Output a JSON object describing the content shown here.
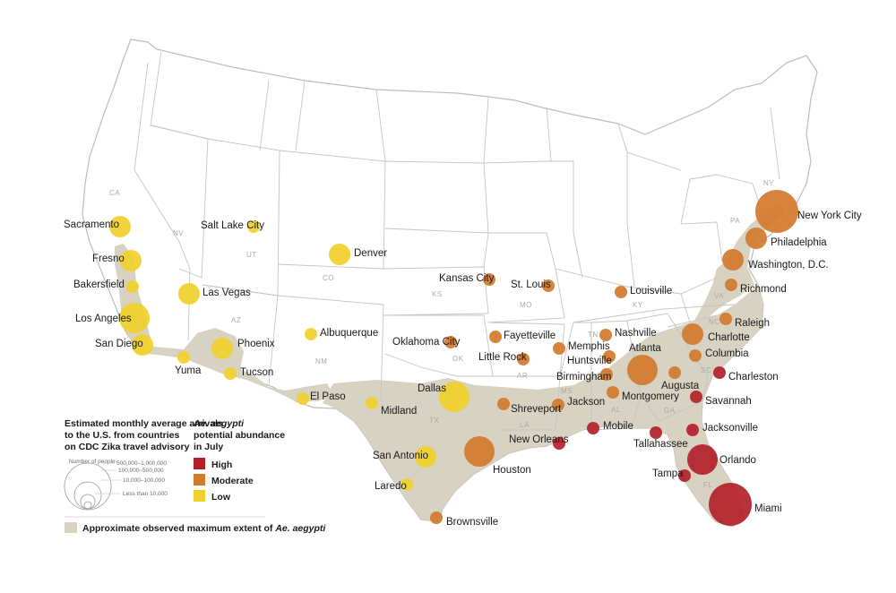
{
  "colors": {
    "high": "#b3202a",
    "moderate": "#d27a2c",
    "low": "#f0d02b",
    "extent": "#d8d2c2",
    "state_line": "#b8b8b8"
  },
  "state_labels": [
    "CA",
    "NV",
    "UT",
    "AZ",
    "CO",
    "NM",
    "KS",
    "OK",
    "TX",
    "MO",
    "AR",
    "LA",
    "MS",
    "AL",
    "GA",
    "TN",
    "KY",
    "SC",
    "NC",
    "VA",
    "FL",
    "PA",
    "NY"
  ],
  "cities": [
    {
      "name": "New York City",
      "level": "moderate",
      "arrivals": "500,000–1,000,000"
    },
    {
      "name": "Philadelphia",
      "level": "moderate",
      "arrivals": "10,000–100,000"
    },
    {
      "name": "Washington, D.C.",
      "level": "moderate",
      "arrivals": "10,000–100,000"
    },
    {
      "name": "Richmond",
      "level": "moderate",
      "arrivals": "Less than 10,000"
    },
    {
      "name": "Raleigh",
      "level": "moderate",
      "arrivals": "Less than 10,000"
    },
    {
      "name": "Charlotte",
      "level": "moderate",
      "arrivals": "10,000–100,000"
    },
    {
      "name": "Columbia",
      "level": "moderate",
      "arrivals": "Less than 10,000"
    },
    {
      "name": "Charleston",
      "level": "high",
      "arrivals": "Less than 10,000"
    },
    {
      "name": "Savannah",
      "level": "high",
      "arrivals": "Less than 10,000"
    },
    {
      "name": "Jacksonville",
      "level": "high",
      "arrivals": "Less than 10,000"
    },
    {
      "name": "Orlando",
      "level": "high",
      "arrivals": "100,000–500,000"
    },
    {
      "name": "Tampa",
      "level": "high",
      "arrivals": "Less than 10,000"
    },
    {
      "name": "Miami",
      "level": "high",
      "arrivals": "500,000–1,000,000"
    },
    {
      "name": "Tallahassee",
      "level": "high",
      "arrivals": "Less than 10,000"
    },
    {
      "name": "Augusta",
      "level": "moderate",
      "arrivals": "Less than 10,000"
    },
    {
      "name": "Atlanta",
      "level": "moderate",
      "arrivals": "100,000–500,000"
    },
    {
      "name": "Nashville",
      "level": "moderate",
      "arrivals": "Less than 10,000"
    },
    {
      "name": "Huntsville",
      "level": "moderate",
      "arrivals": "Less than 10,000"
    },
    {
      "name": "Birmingham",
      "level": "moderate",
      "arrivals": "Less than 10,000"
    },
    {
      "name": "Montgomery",
      "level": "moderate",
      "arrivals": "Less than 10,000"
    },
    {
      "name": "Mobile",
      "level": "high",
      "arrivals": "Less than 10,000"
    },
    {
      "name": "New Orleans",
      "level": "high",
      "arrivals": "Less than 10,000"
    },
    {
      "name": "Jackson",
      "level": "moderate",
      "arrivals": "Less than 10,000"
    },
    {
      "name": "Memphis",
      "level": "moderate",
      "arrivals": "Less than 10,000"
    },
    {
      "name": "Louisville",
      "level": "moderate",
      "arrivals": "Less than 10,000"
    },
    {
      "name": "St. Louis",
      "level": "moderate",
      "arrivals": "Less than 10,000"
    },
    {
      "name": "Kansas City",
      "level": "moderate",
      "arrivals": "Less than 10,000"
    },
    {
      "name": "Fayetteville",
      "level": "moderate",
      "arrivals": "Less than 10,000"
    },
    {
      "name": "Little Rock",
      "level": "moderate",
      "arrivals": "Less than 10,000"
    },
    {
      "name": "Oklahoma City",
      "level": "moderate",
      "arrivals": "Less than 10,000"
    },
    {
      "name": "Shreveport",
      "level": "moderate",
      "arrivals": "Less than 10,000"
    },
    {
      "name": "Houston",
      "level": "moderate",
      "arrivals": "100,000–500,000"
    },
    {
      "name": "Brownsville",
      "level": "moderate",
      "arrivals": "Less than 10,000"
    },
    {
      "name": "Dallas",
      "level": "low",
      "arrivals": "100,000–500,000"
    },
    {
      "name": "San Antonio",
      "level": "low",
      "arrivals": "10,000–100,000"
    },
    {
      "name": "Laredo",
      "level": "low",
      "arrivals": "Less than 10,000"
    },
    {
      "name": "Midland",
      "level": "low",
      "arrivals": "Less than 10,000"
    },
    {
      "name": "El Paso",
      "level": "low",
      "arrivals": "Less than 10,000"
    },
    {
      "name": "Albuquerque",
      "level": "low",
      "arrivals": "Less than 10,000"
    },
    {
      "name": "Denver",
      "level": "low",
      "arrivals": "10,000–100,000"
    },
    {
      "name": "Salt Lake City",
      "level": "low",
      "arrivals": "Less than 10,000"
    },
    {
      "name": "Phoenix",
      "level": "low",
      "arrivals": "10,000–100,000"
    },
    {
      "name": "Tucson",
      "level": "low",
      "arrivals": "Less than 10,000"
    },
    {
      "name": "Yuma",
      "level": "low",
      "arrivals": "Less than 10,000"
    },
    {
      "name": "Las Vegas",
      "level": "low",
      "arrivals": "10,000–100,000"
    },
    {
      "name": "San Diego",
      "level": "low",
      "arrivals": "10,000–100,000"
    },
    {
      "name": "Los Angeles",
      "level": "low",
      "arrivals": "100,000–500,000"
    },
    {
      "name": "Bakersfield",
      "level": "low",
      "arrivals": "Less than 10,000"
    },
    {
      "name": "Fresno",
      "level": "low",
      "arrivals": "10,000–100,000"
    },
    {
      "name": "Sacramento",
      "level": "low",
      "arrivals": "10,000–100,000"
    }
  ],
  "legend": {
    "size_title": [
      "Estimated monthly average arrivals",
      "to the U.S. from countries",
      "on CDC Zika travel advisory"
    ],
    "number_of_people": "Number of people",
    "size_bins": [
      "500,000–1,000,000",
      "100,000–500,000",
      "10,000–100,000",
      "Less than 10,000"
    ],
    "abundance_title_species": "Ae. aegypti",
    "abundance_title_rest": [
      "potential abundance",
      "in July"
    ],
    "abundance_levels": [
      {
        "key": "high",
        "label": "High"
      },
      {
        "key": "moderate",
        "label": "Moderate"
      },
      {
        "key": "low",
        "label": "Low"
      }
    ],
    "extent_label_prefix": "Approximate observed maximum extent of ",
    "extent_label_species": "Ae. aegypti"
  }
}
